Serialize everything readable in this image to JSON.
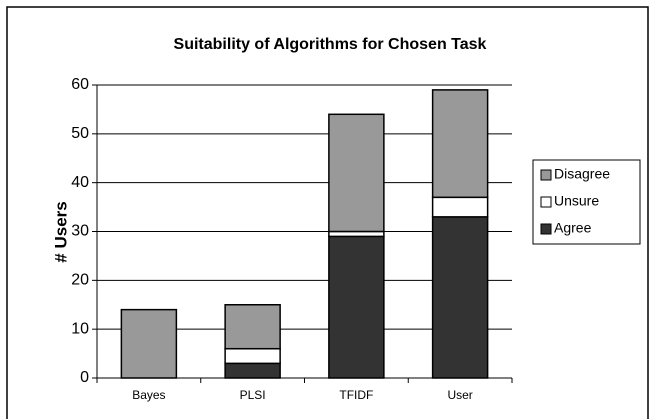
{
  "chart_data": {
    "type": "stacked_bar",
    "title": "Suitability of Algorithms for Chosen Task",
    "y_label": "# Users",
    "categories": [
      "Bayes",
      "PLSI",
      "TFIDF",
      "User"
    ],
    "series": [
      {
        "name": "Agree",
        "color": "#333333",
        "values": [
          0,
          3,
          29,
          33
        ]
      },
      {
        "name": "Unsure",
        "color": "#ffffff",
        "values": [
          0,
          3,
          1,
          4
        ]
      },
      {
        "name": "Disagree",
        "color": "#999999",
        "values": [
          14,
          9,
          24,
          22
        ]
      }
    ],
    "ylim": [
      0,
      60
    ],
    "yticks": [
      0,
      10,
      20,
      30,
      40,
      50,
      60
    ],
    "grid": true,
    "legend": "right"
  }
}
